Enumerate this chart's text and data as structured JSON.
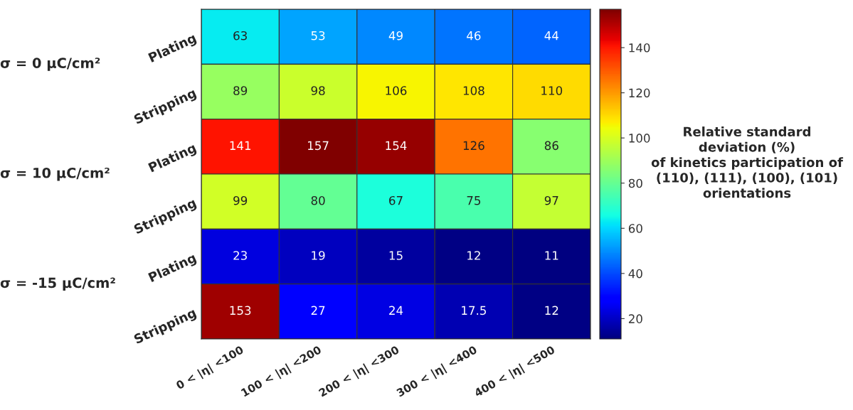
{
  "chart_data": {
    "type": "heatmap",
    "categories": [
      "0 < |η| <100",
      "100 < |η| <200",
      "200 < |η| <300",
      "300 < |η| <400",
      "400 < |η| <500"
    ],
    "y_categories": [
      "Plating",
      "Stripping",
      "Plating",
      "Stripping",
      "Plating",
      "Stripping"
    ],
    "cells": [
      [
        63,
        53,
        49,
        46,
        44
      ],
      [
        89,
        98,
        106,
        108,
        110
      ],
      [
        141,
        157,
        154,
        126,
        86
      ],
      [
        99,
        80,
        67,
        75,
        97
      ],
      [
        23,
        19,
        15,
        12,
        11
      ],
      [
        153,
        27,
        24,
        17.5,
        12
      ]
    ],
    "clim": [
      11,
      157
    ],
    "cticks": [
      20,
      40,
      60,
      80,
      100,
      120,
      140
    ],
    "clabel": "Relative standard\ndeviation (%)\nof kinetics participation of\n(110), (111), (100), (101)\norientations",
    "annotations": [
      "σ = 0 μC/cm²",
      "σ = 10 μC/cm²",
      "σ = -15 μC/cm²"
    ],
    "data_labels": true
  }
}
